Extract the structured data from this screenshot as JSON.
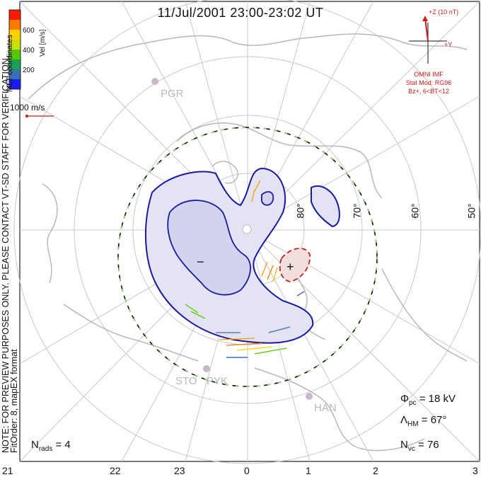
{
  "title": "11/Jul/2001 23:00-23:02 UT",
  "coordinates_label": "MLT coordinates",
  "notes": {
    "line1": "NOTE: FOR PREVIEW PURPOSES ONLY. PLEASE CONTACT VT-SD STAFF FOR VERIFICATION.",
    "line2": "FitOrder: 8, mapEX format"
  },
  "colorbar": {
    "unit": "Vel [m/s]",
    "ticks": [
      "600",
      "400",
      "200"
    ],
    "colors": [
      "#ff1a00",
      "#ff7a00",
      "#ffd000",
      "#c8e000",
      "#55c800",
      "#1aa050",
      "#3b6fb0",
      "#1a1aff"
    ]
  },
  "velocity_scale": "1000 m/s",
  "imf": {
    "z_label": "+Z (10 nT)",
    "y_label": "+Y",
    "source": "OMNI IMF",
    "model": "Stat Mod: RG96",
    "condition": "Bz+, 6<BT<12",
    "color": "#cc1b1b"
  },
  "stations": [
    "PGR",
    "STO",
    "PYK",
    "HAN"
  ],
  "latitude_labels": [
    "80°",
    "70°",
    "60°",
    "50°"
  ],
  "mlt_ticks": [
    "21",
    "22",
    "23",
    "0",
    "1",
    "2",
    "3"
  ],
  "symbols": {
    "minus": "−",
    "plus": "+"
  },
  "stats": {
    "phi_sym": "Φ",
    "phi_sub": "pc",
    "phi_val": " = 18 kV",
    "lambda_sym": "Λ",
    "lambda_sub": "HM",
    "lambda_val": " = 67°",
    "nvc_sym": "N",
    "nvc_sub": "vc",
    "nvc_val": " = 76",
    "nrads_sym": "N",
    "nrads_sub": "rads",
    "nrads_val": " = 4"
  }
}
